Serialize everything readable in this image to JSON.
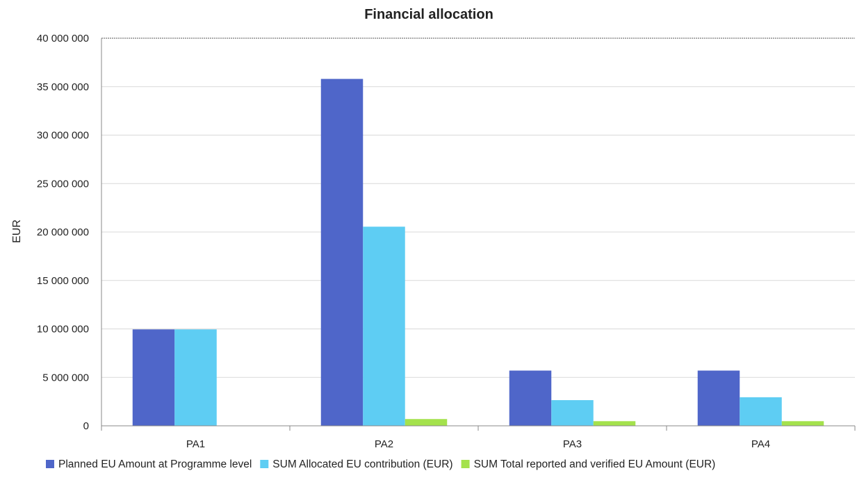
{
  "chart_data": {
    "type": "bar",
    "title": "Financial allocation",
    "xlabel": "",
    "ylabel": "EUR",
    "categories": [
      "PA1",
      "PA2",
      "PA3",
      "PA4"
    ],
    "ylim": [
      0,
      40000000
    ],
    "yticks": [
      0,
      5000000,
      10000000,
      15000000,
      20000000,
      25000000,
      30000000,
      35000000,
      40000000
    ],
    "ytick_labels": [
      "0",
      "5 000 000",
      "10 000 000",
      "15 000 000",
      "20 000 000",
      "25 000 000",
      "30 000 000",
      "35 000 000",
      "40 000 000"
    ],
    "grid": true,
    "legend_position": "bottom",
    "series": [
      {
        "name": "Planned EU Amount at Programme level",
        "color": "#4F66C9",
        "values": [
          9950000,
          35800000,
          5700000,
          5700000
        ]
      },
      {
        "name": "SUM Allocated EU contribution (EUR)",
        "color": "#5ECDF3",
        "values": [
          9950000,
          20550000,
          2650000,
          2950000
        ]
      },
      {
        "name": "SUM Total reported and verified  EU Amount (EUR)",
        "color": "#A4E24C",
        "values": [
          0,
          700000,
          480000,
          480000
        ]
      }
    ]
  }
}
